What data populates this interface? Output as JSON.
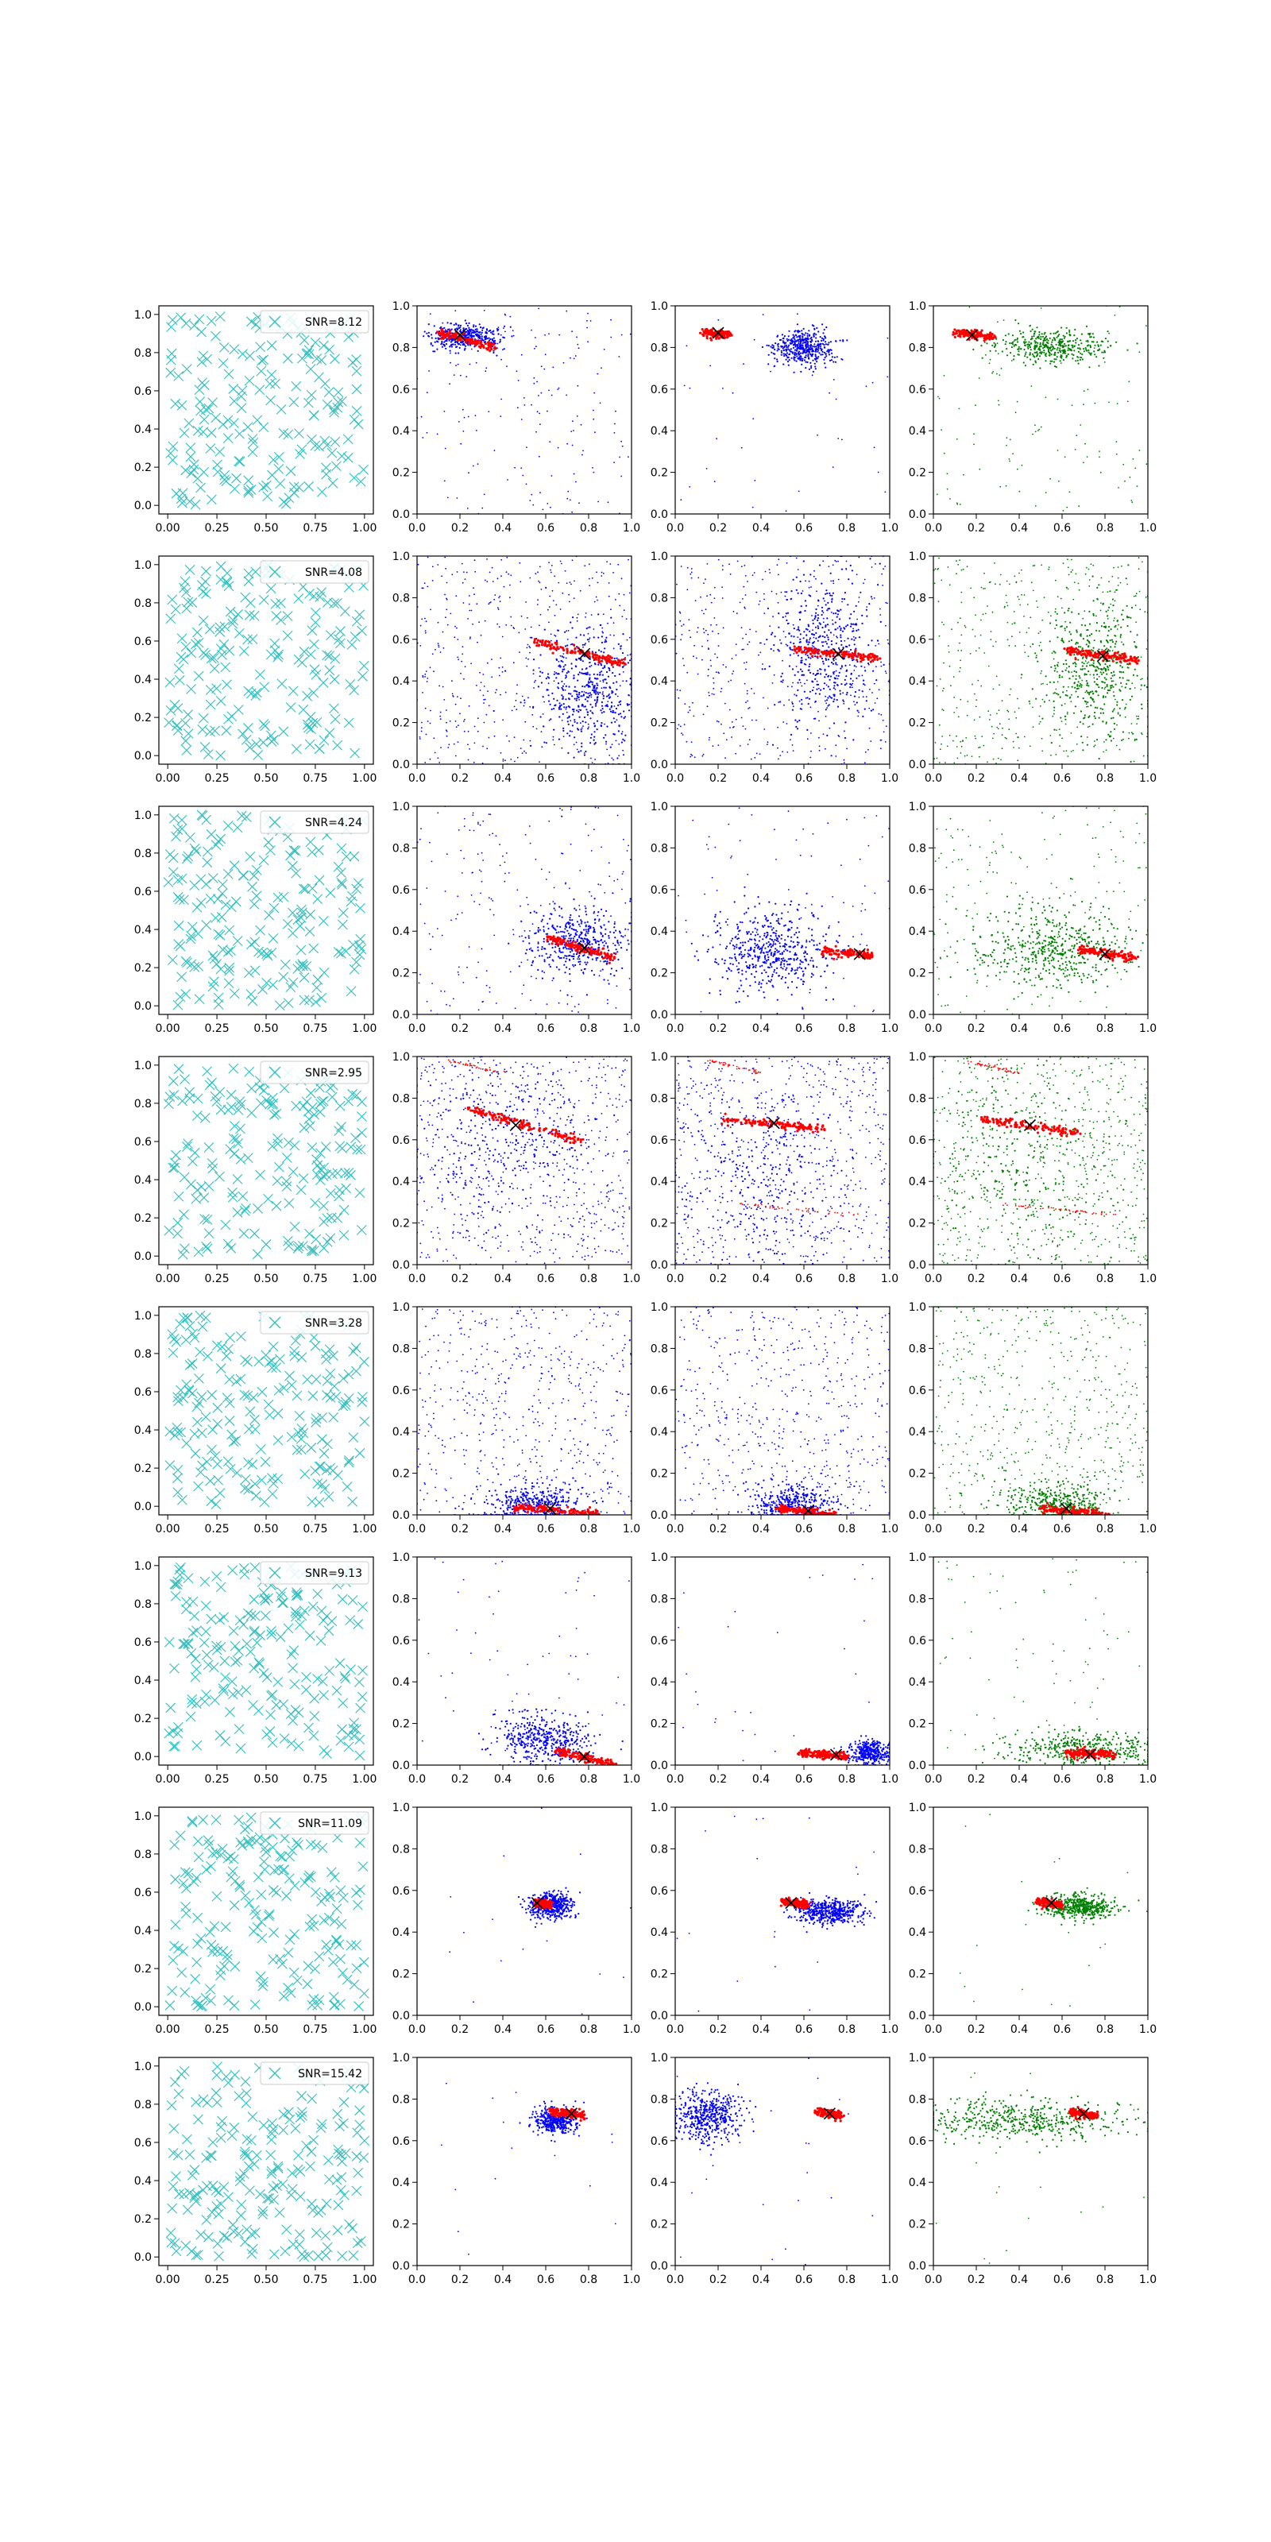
{
  "figure": {
    "layout": "8 rows x 4 columns of scatter panels"
  },
  "chart_data": {
    "type": "scatter",
    "panel_grid": {
      "rows": 8,
      "cols": 4
    },
    "xlim": [
      0.0,
      1.0
    ],
    "ylim": [
      0.0,
      1.0
    ],
    "first_column_xticks": [
      "0.00",
      "0.25",
      "0.50",
      "0.75",
      "1.00"
    ],
    "other_columns_xticks": [
      "0.0",
      "0.2",
      "0.4",
      "0.6",
      "0.8",
      "1.0"
    ],
    "yticks": [
      "0.0",
      "0.2",
      "0.4",
      "0.6",
      "0.8",
      "1.0"
    ],
    "colors": {
      "markers": "#2fbfbf",
      "column2": "#0000ff",
      "column3": "#0000ff",
      "column4": "#008000",
      "overlay": "#ff0000",
      "center": "#000000"
    },
    "legend_placement": "top-right",
    "rows": [
      {
        "snr_label": "SNR=8.12",
        "clusters": [
          {
            "col": 2,
            "cx": 0.22,
            "cy": 0.85,
            "sx": 0.08,
            "sy": 0.03,
            "n": 380,
            "bg": 180
          },
          {
            "col": 3,
            "cx": 0.6,
            "cy": 0.8,
            "sx": 0.07,
            "sy": 0.04,
            "n": 450,
            "bg": 40
          },
          {
            "col": 4,
            "cx": 0.55,
            "cy": 0.8,
            "sx": 0.12,
            "sy": 0.04,
            "n": 400,
            "bg": 120
          }
        ],
        "streaks": [
          {
            "cols": [
              2
            ],
            "x1": 0.1,
            "y1": 0.87,
            "x2": 0.36,
            "y2": 0.8
          },
          {
            "cols": [
              3
            ],
            "x1": 0.13,
            "y1": 0.87,
            "x2": 0.26,
            "y2": 0.86
          },
          {
            "cols": [
              4
            ],
            "x1": 0.1,
            "y1": 0.87,
            "x2": 0.28,
            "y2": 0.85
          }
        ],
        "centers": [
          {
            "col": 2,
            "x": 0.2,
            "y": 0.86
          },
          {
            "col": 3,
            "x": 0.2,
            "y": 0.87
          },
          {
            "col": 4,
            "x": 0.18,
            "y": 0.86
          }
        ]
      },
      {
        "snr_label": "SNR=4.08",
        "clusters": [
          {
            "col": 2,
            "cx": 0.8,
            "cy": 0.35,
            "sx": 0.12,
            "sy": 0.15,
            "n": 450,
            "bg": 500
          },
          {
            "col": 3,
            "cx": 0.7,
            "cy": 0.55,
            "sx": 0.12,
            "sy": 0.18,
            "n": 450,
            "bg": 450
          },
          {
            "col": 4,
            "cx": 0.75,
            "cy": 0.45,
            "sx": 0.12,
            "sy": 0.18,
            "n": 450,
            "bg": 450
          }
        ],
        "streaks": [
          {
            "cols": [
              2
            ],
            "x1": 0.55,
            "y1": 0.59,
            "x2": 0.98,
            "y2": 0.48
          },
          {
            "cols": [
              3
            ],
            "x1": 0.55,
            "y1": 0.55,
            "x2": 0.95,
            "y2": 0.51
          },
          {
            "cols": [
              4
            ],
            "x1": 0.62,
            "y1": 0.55,
            "x2": 0.95,
            "y2": 0.5
          }
        ],
        "centers": [
          {
            "col": 2,
            "x": 0.78,
            "y": 0.53
          },
          {
            "col": 3,
            "x": 0.76,
            "y": 0.53
          },
          {
            "col": 4,
            "x": 0.79,
            "y": 0.52
          }
        ]
      },
      {
        "snr_label": "SNR=4.24",
        "clusters": [
          {
            "col": 2,
            "cx": 0.75,
            "cy": 0.35,
            "sx": 0.12,
            "sy": 0.08,
            "n": 420,
            "bg": 220
          },
          {
            "col": 3,
            "cx": 0.45,
            "cy": 0.3,
            "sx": 0.14,
            "sy": 0.1,
            "n": 520,
            "bg": 80
          },
          {
            "col": 4,
            "cx": 0.55,
            "cy": 0.32,
            "sx": 0.18,
            "sy": 0.1,
            "n": 480,
            "bg": 200
          }
        ],
        "streaks": [
          {
            "cols": [
              2
            ],
            "x1": 0.6,
            "y1": 0.37,
            "x2": 0.92,
            "y2": 0.27
          },
          {
            "cols": [
              3
            ],
            "x1": 0.68,
            "y1": 0.31,
            "x2": 0.93,
            "y2": 0.28
          },
          {
            "cols": [
              4
            ],
            "x1": 0.68,
            "y1": 0.31,
            "x2": 0.95,
            "y2": 0.27
          }
        ],
        "centers": [
          {
            "col": 2,
            "x": 0.78,
            "y": 0.32
          },
          {
            "col": 3,
            "x": 0.86,
            "y": 0.29
          },
          {
            "col": 4,
            "x": 0.8,
            "y": 0.29
          }
        ]
      },
      {
        "snr_label": "SNR=2.95",
        "clusters": [
          {
            "col": 2,
            "cx": 0.4,
            "cy": 0.6,
            "sx": 0.2,
            "sy": 0.2,
            "n": 250,
            "bg": 700
          },
          {
            "col": 3,
            "cx": 0.4,
            "cy": 0.4,
            "sx": 0.2,
            "sy": 0.2,
            "n": 250,
            "bg": 700
          },
          {
            "col": 4,
            "cx": 0.4,
            "cy": 0.5,
            "sx": 0.22,
            "sy": 0.22,
            "n": 250,
            "bg": 700
          }
        ],
        "streaks": [
          {
            "cols": [
              2
            ],
            "x1": 0.22,
            "y1": 0.75,
            "x2": 0.78,
            "y2": 0.59
          },
          {
            "cols": [
              3
            ],
            "x1": 0.22,
            "y1": 0.7,
            "x2": 0.7,
            "y2": 0.65
          },
          {
            "cols": [
              4
            ],
            "x1": 0.22,
            "y1": 0.7,
            "x2": 0.68,
            "y2": 0.63
          },
          {
            "cols": [
              2,
              3,
              4
            ],
            "x1": 0.15,
            "y1": 0.98,
            "x2": 0.4,
            "y2": 0.92,
            "faint": true
          },
          {
            "cols": [
              3,
              4
            ],
            "x1": 0.3,
            "y1": 0.29,
            "x2": 0.85,
            "y2": 0.24,
            "faint": true
          }
        ],
        "centers": [
          {
            "col": 2,
            "x": 0.46,
            "y": 0.67
          },
          {
            "col": 3,
            "x": 0.46,
            "y": 0.68
          },
          {
            "col": 4,
            "x": 0.45,
            "y": 0.67
          }
        ]
      },
      {
        "snr_label": "SNR=3.28",
        "clusters": [
          {
            "col": 2,
            "cx": 0.55,
            "cy": 0.05,
            "sx": 0.12,
            "sy": 0.05,
            "n": 380,
            "bg": 550
          },
          {
            "col": 3,
            "cx": 0.55,
            "cy": 0.05,
            "sx": 0.1,
            "sy": 0.05,
            "n": 380,
            "bg": 550
          },
          {
            "col": 4,
            "cx": 0.58,
            "cy": 0.05,
            "sx": 0.12,
            "sy": 0.05,
            "n": 380,
            "bg": 550
          }
        ],
        "streaks": [
          {
            "cols": [
              2
            ],
            "x1": 0.45,
            "y1": 0.04,
            "x2": 0.85,
            "y2": 0.0
          },
          {
            "cols": [
              3
            ],
            "x1": 0.48,
            "y1": 0.03,
            "x2": 0.75,
            "y2": 0.0
          },
          {
            "cols": [
              4
            ],
            "x1": 0.5,
            "y1": 0.03,
            "x2": 0.82,
            "y2": 0.0
          }
        ],
        "centers": [
          {
            "col": 2,
            "x": 0.62,
            "y": 0.03
          },
          {
            "col": 3,
            "x": 0.62,
            "y": 0.02
          },
          {
            "col": 4,
            "x": 0.62,
            "y": 0.03
          }
        ]
      },
      {
        "snr_label": "SNR=9.13",
        "clusters": [
          {
            "col": 2,
            "cx": 0.6,
            "cy": 0.12,
            "sx": 0.12,
            "sy": 0.06,
            "n": 450,
            "bg": 60
          },
          {
            "col": 3,
            "cx": 0.9,
            "cy": 0.06,
            "sx": 0.05,
            "sy": 0.03,
            "n": 350,
            "bg": 30
          },
          {
            "col": 4,
            "cx": 0.7,
            "cy": 0.08,
            "sx": 0.18,
            "sy": 0.04,
            "n": 420,
            "bg": 80
          }
        ],
        "streaks": [
          {
            "cols": [
              2
            ],
            "x1": 0.65,
            "y1": 0.07,
            "x2": 0.92,
            "y2": 0.0
          },
          {
            "cols": [
              3
            ],
            "x1": 0.58,
            "y1": 0.06,
            "x2": 0.8,
            "y2": 0.04
          },
          {
            "cols": [
              4
            ],
            "x1": 0.62,
            "y1": 0.06,
            "x2": 0.85,
            "y2": 0.05
          }
        ],
        "centers": [
          {
            "col": 2,
            "x": 0.78,
            "y": 0.04
          },
          {
            "col": 3,
            "x": 0.75,
            "y": 0.05
          },
          {
            "col": 4,
            "x": 0.73,
            "y": 0.05
          }
        ]
      },
      {
        "snr_label": "SNR=11.09",
        "clusters": [
          {
            "col": 2,
            "cx": 0.62,
            "cy": 0.53,
            "sx": 0.05,
            "sy": 0.03,
            "n": 500,
            "bg": 15
          },
          {
            "col": 3,
            "cx": 0.72,
            "cy": 0.5,
            "sx": 0.08,
            "sy": 0.03,
            "n": 500,
            "bg": 20
          },
          {
            "col": 4,
            "cx": 0.68,
            "cy": 0.52,
            "sx": 0.08,
            "sy": 0.03,
            "n": 500,
            "bg": 20
          }
        ],
        "streaks": [
          {
            "cols": [
              2
            ],
            "x1": 0.55,
            "y1": 0.54,
            "x2": 0.62,
            "y2": 0.53
          },
          {
            "cols": [
              3
            ],
            "x1": 0.5,
            "y1": 0.55,
            "x2": 0.62,
            "y2": 0.53
          },
          {
            "cols": [
              4
            ],
            "x1": 0.48,
            "y1": 0.55,
            "x2": 0.6,
            "y2": 0.53
          }
        ],
        "centers": [
          {
            "col": 2,
            "x": 0.56,
            "y": 0.54
          },
          {
            "col": 3,
            "x": 0.54,
            "y": 0.54
          },
          {
            "col": 4,
            "x": 0.55,
            "y": 0.54
          }
        ]
      },
      {
        "snr_label": "SNR=15.42",
        "clusters": [
          {
            "col": 2,
            "cx": 0.65,
            "cy": 0.7,
            "sx": 0.05,
            "sy": 0.03,
            "n": 450,
            "bg": 15
          },
          {
            "col": 3,
            "cx": 0.15,
            "cy": 0.72,
            "sx": 0.08,
            "sy": 0.06,
            "n": 500,
            "bg": 25
          },
          {
            "col": 4,
            "cx": 0.4,
            "cy": 0.7,
            "sx": 0.25,
            "sy": 0.05,
            "n": 500,
            "bg": 20
          }
        ],
        "streaks": [
          {
            "cols": [
              2
            ],
            "x1": 0.62,
            "y1": 0.74,
            "x2": 0.78,
            "y2": 0.72
          },
          {
            "cols": [
              3
            ],
            "x1": 0.66,
            "y1": 0.74,
            "x2": 0.78,
            "y2": 0.72
          },
          {
            "cols": [
              4
            ],
            "x1": 0.64,
            "y1": 0.74,
            "x2": 0.76,
            "y2": 0.72
          }
        ],
        "centers": [
          {
            "col": 2,
            "x": 0.72,
            "y": 0.73
          },
          {
            "col": 3,
            "x": 0.72,
            "y": 0.73
          },
          {
            "col": 4,
            "x": 0.7,
            "y": 0.73
          }
        ]
      }
    ]
  }
}
